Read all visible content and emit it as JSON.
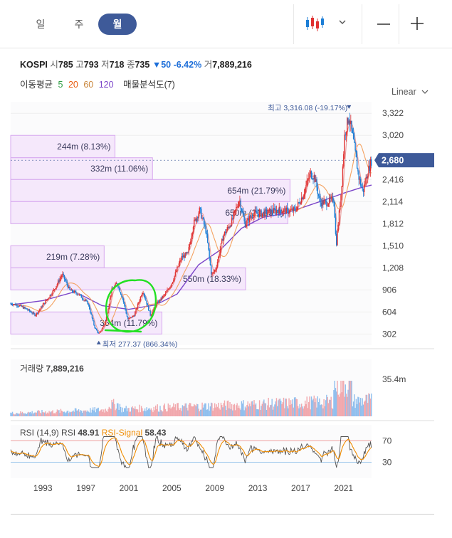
{
  "toolbar": {
    "tabs": [
      {
        "label": "일",
        "active": false
      },
      {
        "label": "주",
        "active": false
      },
      {
        "label": "월",
        "active": true
      }
    ],
    "chart_type_icon": "candlestick-icon",
    "dropdown_icon": "chevron-down-icon",
    "zoom_out_icon": "minus-icon",
    "zoom_in_icon": "plus-icon",
    "accent_color": "#3e5a99"
  },
  "info": {
    "symbol": "KOSPI",
    "open_label": "시",
    "open": "785",
    "high_label": "고",
    "high": "793",
    "low_label": "저",
    "low": "718",
    "close_label": "종",
    "close": "735",
    "change_arrow": "▼",
    "change": "50",
    "change_pct": "-6.42%",
    "volume_label": "거",
    "volume": "7,889,216"
  },
  "indicators": {
    "ma_label": "이동평균",
    "ma": [
      {
        "period": "5",
        "color": "#2f9e44"
      },
      {
        "period": "20",
        "color": "#e8590c"
      },
      {
        "period": "60",
        "color": "#c9853a"
      },
      {
        "period": "120",
        "color": "#7b45c9"
      }
    ],
    "vp_label": "매물분석도(7)"
  },
  "scale": {
    "label": "Linear"
  },
  "chart_data": [
    {
      "type": "candlestick",
      "title": "",
      "y_ticks": [
        "3,322",
        "3,020",
        "2,416",
        "2,114",
        "1,812",
        "1,510",
        "1,208",
        "906",
        "604",
        "302"
      ],
      "y_tick_values": [
        3322,
        3020,
        2416,
        2114,
        1812,
        1510,
        1208,
        906,
        604,
        302
      ],
      "ylim": [
        150,
        3480
      ],
      "xlim": [
        1990.0,
        2023.6
      ],
      "x_ticks": [
        "1993",
        "1997",
        "2001",
        "2005",
        "2009",
        "2013",
        "2017",
        "2021"
      ],
      "x_tick_values": [
        1993,
        1997,
        2001,
        2005,
        2009,
        2013,
        2017,
        2021
      ],
      "current_price": 2680,
      "current_price_label": "2,680",
      "current_price_color": "#3e5a99",
      "max_label": "최고 3,316.08 (-19.17%)",
      "max_point": {
        "x": 2021.5,
        "y": 3316.08
      },
      "min_label": "최저 277.37 (866.34%)",
      "min_point": {
        "x": 1998.2,
        "y": 277.37
      },
      "up_color": "#e03131",
      "down_color": "#1c7ed6",
      "price_anchors": [
        [
          1990.0,
          720
        ],
        [
          1990.8,
          690
        ],
        [
          1991.5,
          640
        ],
        [
          1992.3,
          560
        ],
        [
          1993.0,
          700
        ],
        [
          1994.0,
          900
        ],
        [
          1994.8,
          1120
        ],
        [
          1995.5,
          900
        ],
        [
          1996.3,
          850
        ],
        [
          1997.2,
          720
        ],
        [
          1997.8,
          400
        ],
        [
          1998.2,
          300
        ],
        [
          1998.8,
          450
        ],
        [
          1999.4,
          900
        ],
        [
          1999.9,
          1000
        ],
        [
          2000.4,
          800
        ],
        [
          2000.9,
          500
        ],
        [
          2001.5,
          560
        ],
        [
          2002.3,
          900
        ],
        [
          2003.0,
          560
        ],
        [
          2003.6,
          720
        ],
        [
          2004.4,
          850
        ],
        [
          2005.0,
          1000
        ],
        [
          2005.9,
          1350
        ],
        [
          2006.5,
          1400
        ],
        [
          2007.0,
          1800
        ],
        [
          2007.6,
          2000
        ],
        [
          2008.2,
          1700
        ],
        [
          2008.7,
          1100
        ],
        [
          2009.1,
          1200
        ],
        [
          2009.8,
          1650
        ],
        [
          2010.6,
          1850
        ],
        [
          2011.3,
          2150
        ],
        [
          2011.8,
          1800
        ],
        [
          2012.6,
          1950
        ],
        [
          2013.4,
          1950
        ],
        [
          2014.3,
          1980
        ],
        [
          2015.0,
          2000
        ],
        [
          2015.8,
          1980
        ],
        [
          2016.5,
          2000
        ],
        [
          2017.2,
          2200
        ],
        [
          2017.9,
          2500
        ],
        [
          2018.3,
          2450
        ],
        [
          2018.8,
          2100
        ],
        [
          2019.4,
          2100
        ],
        [
          2020.1,
          2150
        ],
        [
          2020.3,
          1500
        ],
        [
          2020.8,
          2300
        ],
        [
          2021.1,
          3050
        ],
        [
          2021.5,
          3280
        ],
        [
          2021.9,
          2950
        ],
        [
          2022.4,
          2450
        ],
        [
          2022.8,
          2250
        ],
        [
          2023.2,
          2500
        ],
        [
          2023.6,
          2680
        ]
      ],
      "ma120_anchors": [
        [
          1990.0,
          700
        ],
        [
          1993.0,
          760
        ],
        [
          1996.0,
          880
        ],
        [
          1998.5,
          690
        ],
        [
          2001.0,
          640
        ],
        [
          2003.5,
          700
        ],
        [
          2005.5,
          850
        ],
        [
          2007.5,
          1250
        ],
        [
          2009.5,
          1450
        ],
        [
          2011.5,
          1750
        ],
        [
          2013.5,
          1900
        ],
        [
          2015.5,
          1950
        ],
        [
          2017.5,
          2050
        ],
        [
          2019.5,
          2150
        ],
        [
          2021.0,
          2230
        ],
        [
          2022.5,
          2300
        ],
        [
          2023.6,
          2340
        ]
      ],
      "volume_profile": [
        {
          "label": "244m (8.13%)",
          "low": 2714,
          "high": 3020,
          "length": 0.289
        },
        {
          "label": "332m (11.06%)",
          "low": 2416,
          "high": 2714,
          "length": 0.393
        },
        {
          "label": "654m (21.79%)",
          "low": 2114,
          "high": 2416,
          "length": 0.774
        },
        {
          "label": "650m (21.63%)",
          "low": 1812,
          "high": 2114,
          "length": 0.768
        },
        {
          "label": "219m (7.28%)",
          "low": 1208,
          "high": 1510,
          "length": 0.259
        },
        {
          "label": "550m (18.33%)",
          "low": 906,
          "high": 1208,
          "length": 0.651
        },
        {
          "label": "354m (11.79%)",
          "low": 302,
          "high": 604,
          "length": 0.419
        }
      ]
    },
    {
      "type": "bar",
      "title": "거래량",
      "title_value": "7,889,216",
      "y_ticks": [
        "35.4m"
      ],
      "ylim": [
        0,
        40
      ]
    },
    {
      "type": "line",
      "title": "RSI (14,9)",
      "series": [
        {
          "name": "RSI",
          "last_value": "48.91",
          "color": "#555555"
        },
        {
          "name": "RSI-Signal",
          "last_value": "58.43",
          "color": "#f08c00"
        }
      ],
      "levels": [
        {
          "value": "70",
          "color": "#e03131"
        },
        {
          "value": "30",
          "color": "#1c7ed6"
        }
      ],
      "ylim": [
        0,
        100
      ]
    }
  ]
}
